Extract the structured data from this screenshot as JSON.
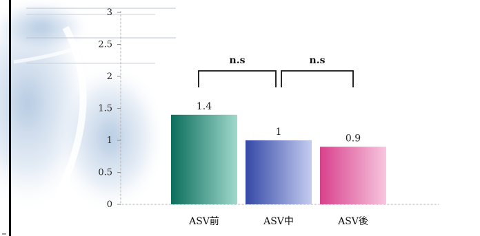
{
  "chart_data": {
    "type": "bar",
    "categories": [
      "ASV前",
      "ASV中",
      "ASV後"
    ],
    "values": [
      1.4,
      1,
      0.9
    ],
    "data_labels": [
      "1.4",
      "1",
      "0.9"
    ],
    "ylim": [
      0,
      3
    ],
    "yticks": [
      {
        "value": 0,
        "label": "0"
      },
      {
        "value": 0.5,
        "label": "0.5"
      },
      {
        "value": 1,
        "label": "1"
      },
      {
        "value": 1.5,
        "label": "1.5"
      },
      {
        "value": 2,
        "label": "2"
      },
      {
        "value": 2.5,
        "label": "2.5"
      },
      {
        "value": 3,
        "label": "3"
      }
    ],
    "grid": false,
    "bar_colors": [
      [
        "#0c6e5c",
        "#9fd8cc"
      ],
      [
        "#3448a6",
        "#c4ccf0"
      ],
      [
        "#d8408c",
        "#f7c6de"
      ]
    ],
    "significance": [
      {
        "from": 0,
        "to": 1,
        "label": "n.s"
      },
      {
        "from": 1,
        "to": 2,
        "label": "n.s"
      }
    ]
  }
}
